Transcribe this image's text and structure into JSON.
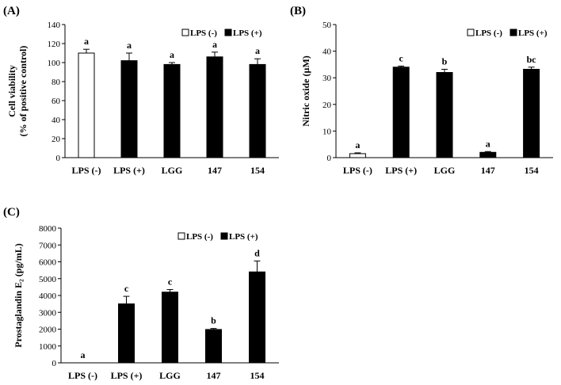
{
  "legend": {
    "neg": "LPS (-)",
    "pos": "LPS (+)"
  },
  "chart_data": [
    {
      "type": "bar",
      "panel_label": "(A)",
      "ylabel_lines": [
        "Cell viability",
        "(% of positive control)"
      ],
      "categories": [
        "LPS (-)",
        "LPS (+)",
        "LGG",
        "147",
        "154"
      ],
      "values": [
        110,
        102,
        98,
        106,
        98
      ],
      "errors": [
        4,
        8,
        2,
        5,
        6
      ],
      "letters": [
        "a",
        "a",
        "a",
        "a",
        "a"
      ],
      "group": [
        "neg",
        "pos",
        "pos",
        "pos",
        "pos"
      ],
      "ylim": [
        0,
        140
      ],
      "yticks": [
        0,
        20,
        40,
        60,
        80,
        100,
        120,
        140
      ]
    },
    {
      "type": "bar",
      "panel_label": "(B)",
      "ylabel_lines": [
        "Nitric oxide (µM)"
      ],
      "categories": [
        "LPS (-)",
        "LPS (+)",
        "LGG",
        "147",
        "154"
      ],
      "values": [
        1.5,
        34,
        32,
        2,
        33.2
      ],
      "errors": [
        0.3,
        0.4,
        1.2,
        0.3,
        0.8
      ],
      "letters": [
        "a",
        "c",
        "b",
        "a",
        "bc"
      ],
      "group": [
        "neg",
        "pos",
        "pos",
        "pos",
        "pos"
      ],
      "ylim": [
        0,
        50
      ],
      "yticks": [
        0,
        10,
        20,
        30,
        40,
        50
      ]
    },
    {
      "type": "bar",
      "panel_label": "(C)",
      "ylabel_lines": [
        "Prostaglandin E₂ (pg/mL)"
      ],
      "categories": [
        "LPS (-)",
        "LPS (+)",
        "LGG",
        "147",
        "154"
      ],
      "values": [
        0,
        3500,
        4200,
        1980,
        5400
      ],
      "errors": [
        0,
        450,
        150,
        60,
        650
      ],
      "letters": [
        "a",
        "c",
        "c",
        "b",
        "d"
      ],
      "group": [
        "neg",
        "pos",
        "pos",
        "pos",
        "pos"
      ],
      "ylim": [
        0,
        8000
      ],
      "yticks": [
        0,
        1000,
        2000,
        3000,
        4000,
        5000,
        6000,
        7000,
        8000
      ]
    }
  ]
}
